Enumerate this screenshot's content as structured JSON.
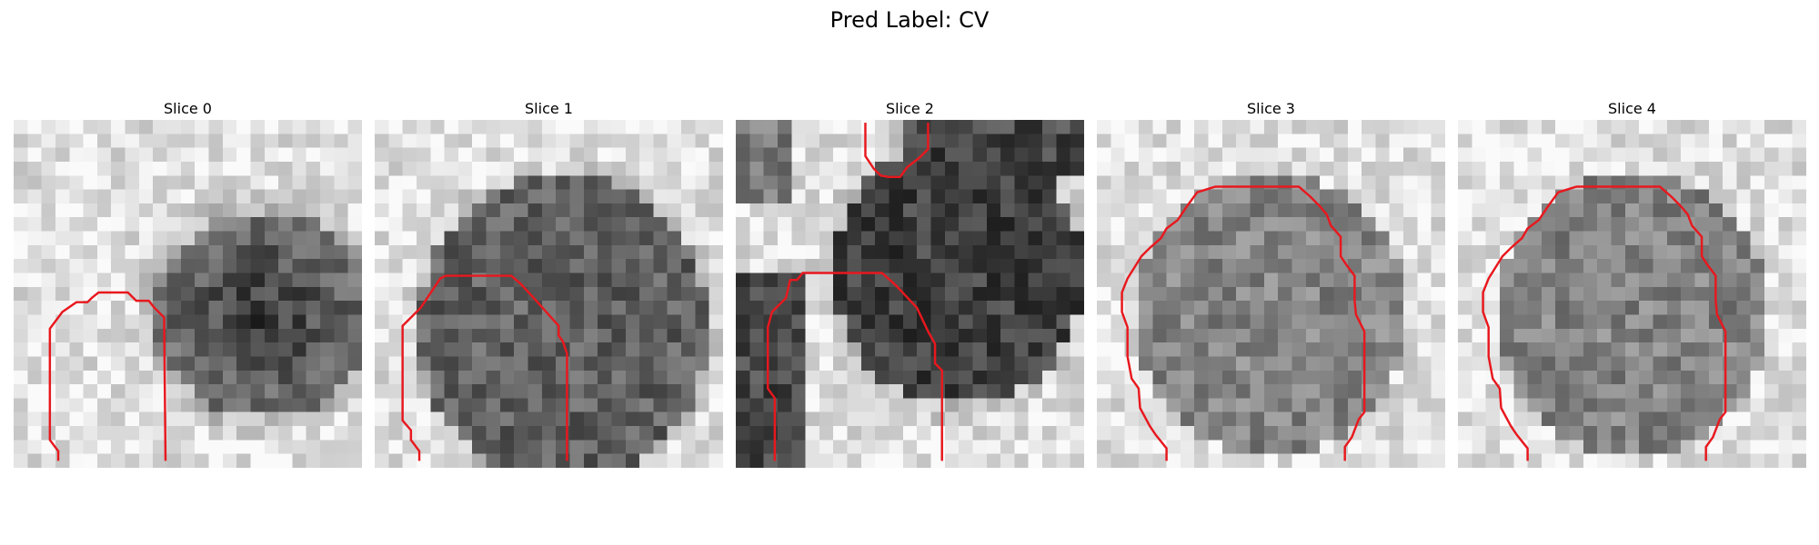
{
  "figure": {
    "title": "Pred Label: CV",
    "contour_color": "#e8181e",
    "panels": [
      {
        "label": "Slice 0",
        "pattern": "slice0",
        "contour": [
          [
            3.2,
            24.5
          ],
          [
            3.2,
            23.8
          ],
          [
            2.6,
            23.0
          ],
          [
            2.6,
            15.0
          ],
          [
            3.5,
            13.8
          ],
          [
            4.5,
            13.1
          ],
          [
            5.3,
            13.1
          ],
          [
            5.6,
            12.8
          ],
          [
            6.1,
            12.4
          ],
          [
            7.0,
            12.4
          ],
          [
            7.9,
            12.4
          ],
          [
            8.2,
            12.4
          ],
          [
            8.8,
            13.0
          ],
          [
            9.5,
            13.0
          ],
          [
            9.7,
            13.0
          ],
          [
            10.1,
            13.5
          ],
          [
            10.8,
            14.2
          ],
          [
            10.9,
            24.5
          ]
        ]
      },
      {
        "label": "Slice 1",
        "pattern": "slice1",
        "contour": [
          [
            3.2,
            24.5
          ],
          [
            3.2,
            23.8
          ],
          [
            2.6,
            23.0
          ],
          [
            2.6,
            22.3
          ],
          [
            2.0,
            21.6
          ],
          [
            2.0,
            14.8
          ],
          [
            3.3,
            13.5
          ],
          [
            4.7,
            11.4
          ],
          [
            5.1,
            11.2
          ],
          [
            9.8,
            11.2
          ],
          [
            10.5,
            11.8
          ],
          [
            11.6,
            13.0
          ],
          [
            13.2,
            14.8
          ],
          [
            13.2,
            15.5
          ],
          [
            13.5,
            15.9
          ],
          [
            13.8,
            16.8
          ],
          [
            13.8,
            24.5
          ]
        ]
      },
      {
        "label": "Slice 2",
        "pattern": "slice2",
        "contour": [
          [
            2.8,
            24.5
          ],
          [
            2.8,
            20.0
          ],
          [
            2.3,
            19.3
          ],
          [
            2.3,
            14.9
          ],
          [
            2.6,
            13.8
          ],
          [
            3.6,
            12.8
          ],
          [
            3.9,
            11.5
          ],
          [
            4.4,
            11.5
          ],
          [
            4.8,
            11.0
          ],
          [
            5.5,
            11.0
          ],
          [
            10.5,
            11.0
          ],
          [
            11.5,
            11.9
          ],
          [
            13.0,
            13.5
          ],
          [
            13.8,
            15.2
          ],
          [
            14.3,
            16.1
          ],
          [
            14.3,
            17.5
          ],
          [
            14.8,
            18.0
          ],
          [
            14.8,
            24.5
          ]
        ],
        "contour2": [
          [
            9.3,
            0.2
          ],
          [
            9.3,
            2.6
          ],
          [
            9.9,
            3.5
          ],
          [
            10.4,
            4.0
          ],
          [
            11.0,
            4.1
          ],
          [
            11.8,
            4.1
          ],
          [
            12.3,
            3.4
          ],
          [
            13.2,
            2.7
          ],
          [
            13.8,
            2.1
          ],
          [
            13.8,
            0.2
          ]
        ]
      },
      {
        "label": "Slice 3",
        "pattern": "slice3",
        "contour": [
          [
            5.0,
            24.5
          ],
          [
            5.0,
            23.6
          ],
          [
            4.2,
            22.6
          ],
          [
            3.8,
            22.0
          ],
          [
            3.1,
            20.7
          ],
          [
            3.0,
            19.3
          ],
          [
            2.5,
            18.6
          ],
          [
            2.2,
            17.0
          ],
          [
            2.2,
            14.9
          ],
          [
            1.8,
            13.8
          ],
          [
            1.8,
            12.4
          ],
          [
            2.2,
            11.4
          ],
          [
            2.7,
            10.6
          ],
          [
            3.2,
            9.8
          ],
          [
            3.8,
            9.2
          ],
          [
            4.6,
            8.5
          ],
          [
            5.0,
            7.8
          ],
          [
            5.8,
            7.2
          ],
          [
            6.4,
            6.3
          ],
          [
            7.2,
            5.2
          ],
          [
            8.5,
            4.8
          ],
          [
            14.5,
            4.8
          ],
          [
            15.3,
            5.5
          ],
          [
            16.0,
            6.2
          ],
          [
            16.5,
            6.8
          ],
          [
            16.8,
            7.6
          ],
          [
            17.5,
            8.4
          ],
          [
            17.5,
            9.8
          ],
          [
            17.9,
            10.4
          ],
          [
            18.5,
            11.2
          ],
          [
            18.5,
            13.0
          ],
          [
            18.6,
            14.0
          ],
          [
            19.2,
            15.2
          ],
          [
            19.2,
            21.0
          ],
          [
            18.8,
            21.5
          ],
          [
            18.3,
            22.8
          ],
          [
            17.8,
            23.5
          ],
          [
            17.8,
            24.5
          ]
        ]
      },
      {
        "label": "Slice 4",
        "pattern": "slice3",
        "contour": [
          [
            5.0,
            24.5
          ],
          [
            5.0,
            23.6
          ],
          [
            4.2,
            22.6
          ],
          [
            3.8,
            22.0
          ],
          [
            3.1,
            20.7
          ],
          [
            3.0,
            19.3
          ],
          [
            2.5,
            18.6
          ],
          [
            2.2,
            17.0
          ],
          [
            2.2,
            14.9
          ],
          [
            1.8,
            13.8
          ],
          [
            1.8,
            12.4
          ],
          [
            2.2,
            11.4
          ],
          [
            2.7,
            10.6
          ],
          [
            3.2,
            9.8
          ],
          [
            3.8,
            9.2
          ],
          [
            4.6,
            8.5
          ],
          [
            5.0,
            7.8
          ],
          [
            5.8,
            7.2
          ],
          [
            6.4,
            6.3
          ],
          [
            7.2,
            5.2
          ],
          [
            8.5,
            4.8
          ],
          [
            14.5,
            4.8
          ],
          [
            15.3,
            5.5
          ],
          [
            16.0,
            6.2
          ],
          [
            16.5,
            6.8
          ],
          [
            16.8,
            7.6
          ],
          [
            17.5,
            8.4
          ],
          [
            17.5,
            9.8
          ],
          [
            17.9,
            10.4
          ],
          [
            18.5,
            11.2
          ],
          [
            18.5,
            13.0
          ],
          [
            18.6,
            14.0
          ],
          [
            19.2,
            15.2
          ],
          [
            19.2,
            21.0
          ],
          [
            18.8,
            21.5
          ],
          [
            18.3,
            22.8
          ],
          [
            17.8,
            23.5
          ],
          [
            17.8,
            24.5
          ]
        ]
      }
    ]
  }
}
